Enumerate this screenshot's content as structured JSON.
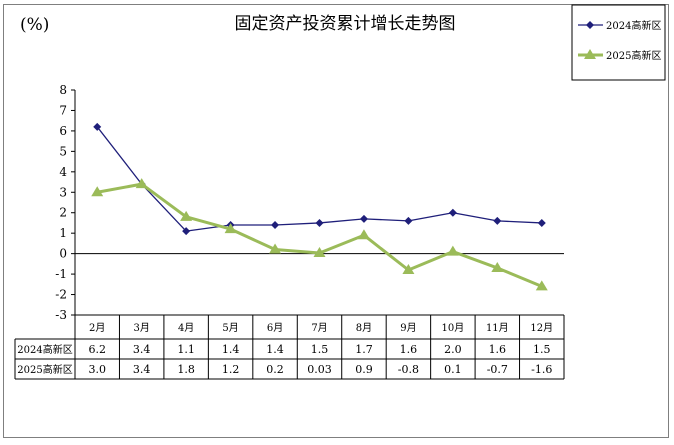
{
  "chart_data": {
    "type": "line",
    "title": "固定资产投资累计增长走势图",
    "ylabel": "(%)",
    "xlabel": "",
    "categories": [
      "2月",
      "3月",
      "4月",
      "5月",
      "6月",
      "7月",
      "8月",
      "9月",
      "10月",
      "11月",
      "12月"
    ],
    "series": [
      {
        "name": "2024高新区",
        "values": [
          6.2,
          3.4,
          1.1,
          1.4,
          1.4,
          1.5,
          1.7,
          1.6,
          2.0,
          1.6,
          1.5
        ],
        "labels": [
          "6.2",
          "3.4",
          "1.1",
          "1.4",
          "1.4",
          "1.5",
          "1.7",
          "1.6",
          "2.0",
          "1.6",
          "1.5"
        ],
        "color": "#1f1f7a",
        "marker": "diamond"
      },
      {
        "name": "2025高新区",
        "values": [
          3.0,
          3.4,
          1.8,
          1.2,
          0.2,
          0.03,
          0.9,
          -0.8,
          0.1,
          -0.7,
          -1.6
        ],
        "labels": [
          "3.0",
          "3.4",
          "1.8",
          "1.2",
          "0.2",
          "0.03",
          "0.9",
          "-0.8",
          "0.1",
          "-0.7",
          "-1.6"
        ],
        "color": "#9bbb59",
        "marker": "triangle"
      }
    ],
    "ylim": [
      -3,
      8
    ],
    "yticks": [
      -3,
      -2,
      -1,
      0,
      1,
      2,
      3,
      4,
      5,
      6,
      7,
      8
    ],
    "legend_position": "top-right",
    "grid": false,
    "data_table": true
  }
}
